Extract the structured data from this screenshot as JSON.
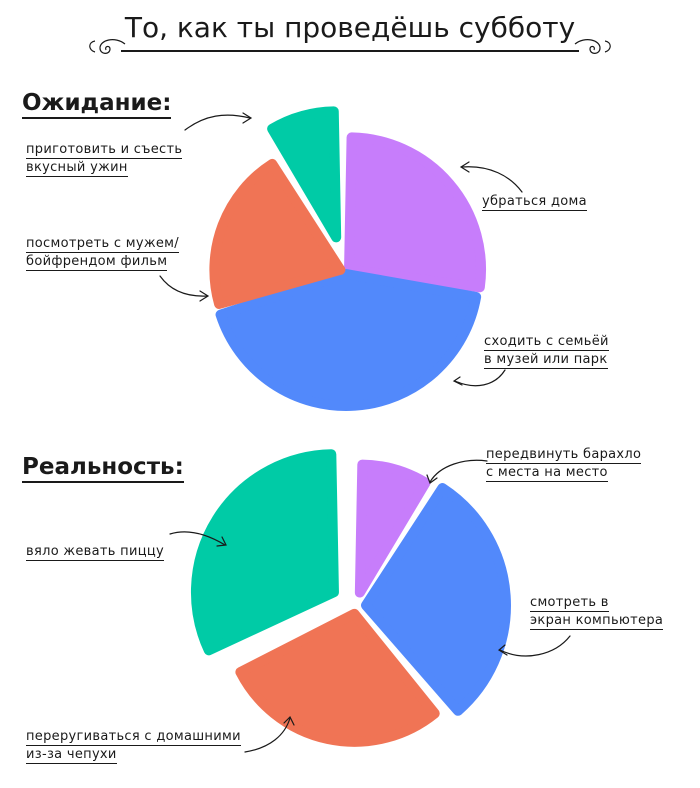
{
  "title": "То, как ты проведёшь субботу",
  "chart_data": [
    {
      "type": "pie",
      "heading": "Ожидание:",
      "slices": [
        {
          "label": [
            "убраться дома"
          ],
          "value": 25,
          "color": "#c77dfb"
        },
        {
          "label": [
            "сходить с семьёй",
            "в музей или парк"
          ],
          "value": 39,
          "color": "#5289fb"
        },
        {
          "label": [
            "посмотреть с мужем/",
            "бойфрендом фильм"
          ],
          "value": 19,
          "color": "#f07455"
        },
        {
          "label": [
            "приготовить и съесть",
            "вкусный ужин"
          ],
          "value": 8,
          "color": "#00cba6"
        }
      ]
    },
    {
      "type": "pie",
      "heading": "Реальность:",
      "slices": [
        {
          "label": [
            "передвинуть барахло",
            "с места на место"
          ],
          "value": 8,
          "color": "#c77dfb"
        },
        {
          "label": [
            "смотреть в",
            "экран компьютера"
          ],
          "value": 27,
          "color": "#5289fb"
        },
        {
          "label": [
            "переругиваться с домашними",
            "из-за чепухи"
          ],
          "value": 26,
          "color": "#f07455"
        },
        {
          "label": [
            "вяло жевать пиццу"
          ],
          "value": 29,
          "color": "#00cba6"
        }
      ]
    }
  ]
}
